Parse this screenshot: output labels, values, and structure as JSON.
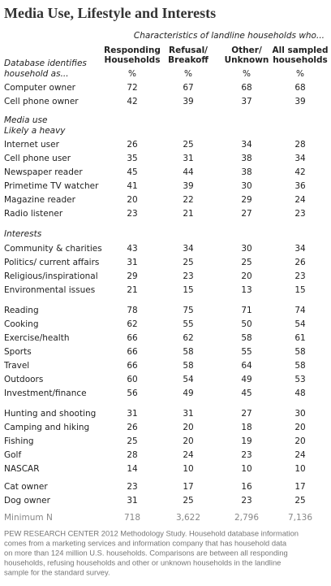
{
  "title": "Media Use, Lifestyle and Interests",
  "subtitle": "Characteristics of landline households who...",
  "columns": [
    [
      "Responding",
      "Households"
    ],
    [
      "Refusal/",
      "Breakoff"
    ],
    [
      "Other/",
      "Unknown"
    ],
    [
      "All sampled",
      "households"
    ]
  ],
  "units": [
    "%",
    "%",
    "%",
    "%"
  ],
  "groups": [
    {
      "heading": [
        "Database identifies",
        "household as..."
      ],
      "rows": [
        {
          "label": "Computer owner",
          "values": [
            "72",
            "67",
            "68",
            "68"
          ]
        },
        {
          "label": "Cell phone owner",
          "values": [
            "42",
            "39",
            "37",
            "39"
          ]
        }
      ]
    },
    {
      "heading": [
        "Media use",
        "Likely a heavy"
      ],
      "rows": [
        {
          "label": "Internet user",
          "values": [
            "26",
            "25",
            "34",
            "28"
          ]
        },
        {
          "label": "Cell phone user",
          "values": [
            "35",
            "31",
            "38",
            "34"
          ]
        },
        {
          "label": "Newspaper reader",
          "values": [
            "45",
            "44",
            "38",
            "42"
          ]
        },
        {
          "label": "Primetime TV watcher",
          "values": [
            "41",
            "39",
            "30",
            "36"
          ]
        },
        {
          "label": "Magazine reader",
          "values": [
            "20",
            "22",
            "29",
            "24"
          ]
        },
        {
          "label": "Radio listener",
          "values": [
            "23",
            "21",
            "27",
            "23"
          ]
        }
      ]
    },
    {
      "heading": [
        "Interests"
      ],
      "rows": [
        {
          "label": "Community & charities",
          "values": [
            "43",
            "34",
            "30",
            "34"
          ]
        },
        {
          "label": "Politics/ current affairs",
          "values": [
            "31",
            "25",
            "25",
            "26"
          ]
        },
        {
          "label": "Religious/inspirational",
          "values": [
            "29",
            "23",
            "20",
            "23"
          ]
        },
        {
          "label": "Environmental issues",
          "values": [
            "21",
            "15",
            "13",
            "15"
          ]
        }
      ]
    },
    {
      "rows": [
        {
          "label": "Reading",
          "values": [
            "78",
            "75",
            "71",
            "74"
          ]
        },
        {
          "label": "Cooking",
          "values": [
            "62",
            "55",
            "50",
            "54"
          ]
        },
        {
          "label": "Exercise/health",
          "values": [
            "66",
            "62",
            "58",
            "61"
          ]
        },
        {
          "label": "Sports",
          "values": [
            "66",
            "58",
            "55",
            "58"
          ]
        },
        {
          "label": "Travel",
          "values": [
            "66",
            "58",
            "64",
            "58"
          ]
        },
        {
          "label": "Outdoors",
          "values": [
            "60",
            "54",
            "49",
            "53"
          ]
        },
        {
          "label": "Investment/finance",
          "values": [
            "56",
            "49",
            "45",
            "48"
          ]
        }
      ]
    },
    {
      "rows": [
        {
          "label": "Hunting and shooting",
          "values": [
            "31",
            "31",
            "27",
            "30"
          ]
        },
        {
          "label": "Camping and hiking",
          "values": [
            "26",
            "20",
            "18",
            "20"
          ]
        },
        {
          "label": "Fishing",
          "values": [
            "25",
            "20",
            "19",
            "20"
          ]
        },
        {
          "label": "Golf",
          "values": [
            "28",
            "24",
            "23",
            "24"
          ]
        },
        {
          "label": "NASCAR",
          "values": [
            "14",
            "10",
            "10",
            "10"
          ]
        }
      ]
    },
    {
      "rows": [
        {
          "label": "Cat owner",
          "values": [
            "23",
            "17",
            "16",
            "17"
          ]
        },
        {
          "label": "Dog owner",
          "values": [
            "31",
            "25",
            "23",
            "25"
          ]
        }
      ]
    }
  ],
  "minimum_n": {
    "label": "Minimum N",
    "values": [
      "718",
      "3,622",
      "2,796",
      "7,136"
    ]
  },
  "footnote": [
    "PEW RESEARCH CENTER 2012 Methodology Study. Household database information",
    "comes from a marketing services and information company that has household data",
    "on more than 124 million U.S. households. Comparisons are between all responding",
    "households, refusing households and other or unknown households in the landline",
    "sample for the standard survey."
  ]
}
